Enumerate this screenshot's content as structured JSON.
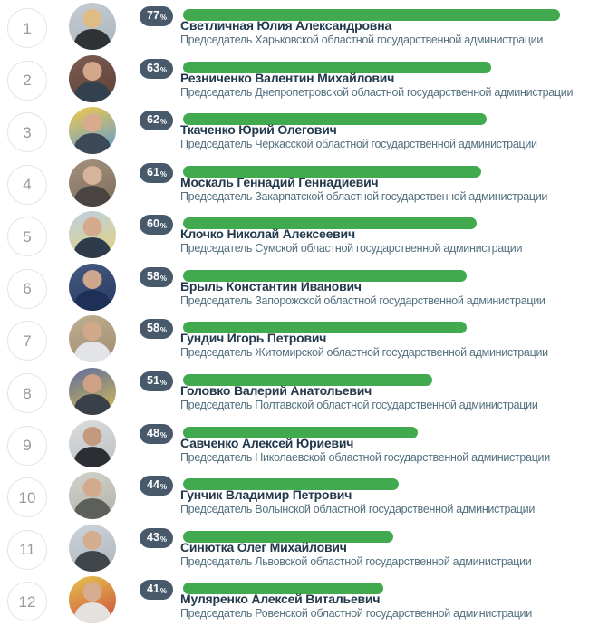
{
  "widget": {
    "description": "Ranking list of heads of Ukrainian regional state administrations with approval percentages"
  },
  "labels": {
    "percent_sign": "%"
  },
  "colors": {
    "bar_green": "#41a94e",
    "badge_bg": "#47596b",
    "name_color": "#22394b",
    "subtitle_color": "#53707f",
    "rank_color": "#9a9a9a",
    "rank_border": "#e3e3e3"
  },
  "rows": [
    {
      "rank": "1",
      "percent": 77,
      "name": "Светличная Юлия Александровна",
      "title": "Председатель Харьковской областной государственной администрации",
      "avatar": {
        "bg1": "#c6cdd3",
        "bg2": "#aab4bc",
        "head": "#dfbc84",
        "body": "#2f3335"
      }
    },
    {
      "rank": "2",
      "percent": 63,
      "name": "Резниченко Валентин Михайлович",
      "title": "Председатель Днепропетровской областной государственной администрации",
      "avatar": {
        "bg1": "#7c5c52",
        "bg2": "#5d4038",
        "head": "#d2a78c",
        "body": "#33404e"
      }
    },
    {
      "rank": "3",
      "percent": 62,
      "name": "Ткаченко Юрий Олегович",
      "title": "Председатель Черкасской областной государственной администрации",
      "avatar": {
        "bg1": "#f2c94c",
        "bg2": "#5b9bd5",
        "head": "#d8ab8d",
        "body": "#3c4a58"
      }
    },
    {
      "rank": "4",
      "percent": 61,
      "name": "Москаль Геннадий Геннадиевич",
      "title": "Председатель Закарпатской областной государственной администрации",
      "avatar": {
        "bg1": "#a3927e",
        "bg2": "#7d6c5a",
        "head": "#d6b49a",
        "body": "#4a4542"
      }
    },
    {
      "rank": "5",
      "percent": 60,
      "name": "Клочко Николай Алексеевич",
      "title": "Председатель Сумской областной государственной администрации",
      "avatar": {
        "bg1": "#bcd0e4",
        "bg2": "#e4d27a",
        "head": "#d4a98c",
        "body": "#2e3b4a"
      }
    },
    {
      "rank": "6",
      "percent": 58,
      "name": "Брыль Константин Иванович",
      "title": "Председатель Запорожской областной государственной администрации",
      "avatar": {
        "bg1": "#46597f",
        "bg2": "#263a63",
        "head": "#cfa78c",
        "body": "#1f3058"
      }
    },
    {
      "rank": "7",
      "percent": 58,
      "name": "Гундич Игорь Петрович",
      "title": "Председатель Житомирской областной государственной администрации",
      "avatar": {
        "bg1": "#c0ae90",
        "bg2": "#a08d70",
        "head": "#d2a88a",
        "body": "#e2e4e8"
      }
    },
    {
      "rank": "8",
      "percent": 51,
      "name": "Головко Валерий Анатольевич",
      "title": "Председатель Полтавской областной государственной администрации",
      "avatar": {
        "bg1": "#5d6d9e",
        "bg2": "#d9bb54",
        "head": "#cfa286",
        "body": "#3a4048"
      }
    },
    {
      "rank": "9",
      "percent": 48,
      "name": "Савченко Алексей Юриевич",
      "title": "Председатель Николаевской областной государственной администрации",
      "avatar": {
        "bg1": "#dadcde",
        "bg2": "#bdc0c3",
        "head": "#c49a7e",
        "body": "#2b2e33"
      }
    },
    {
      "rank": "10",
      "percent": 44,
      "name": "Гунчик Владимир Петрович",
      "title": "Председатель Волынской областной государственной администрации",
      "avatar": {
        "bg1": "#d2d2cc",
        "bg2": "#b2b2aa",
        "head": "#d2ab8e",
        "body": "#5c5f5a"
      }
    },
    {
      "rank": "11",
      "percent": 43,
      "name": "Синютка Олег Михайлович",
      "title": "Председатель Львовской областной государственной администрации",
      "avatar": {
        "bg1": "#cdd4db",
        "bg2": "#aeb6bd",
        "head": "#d4ac8e",
        "body": "#3f4548"
      }
    },
    {
      "rank": "12",
      "percent": 41,
      "name": "Муляренко Алексей Витальевич",
      "title": "Председатель Ровенской областной государственной администрации",
      "avatar": {
        "bg1": "#e6c44e",
        "bg2": "#cc4b3c",
        "head": "#d6ad90",
        "body": "#e4e2df"
      }
    }
  ]
}
